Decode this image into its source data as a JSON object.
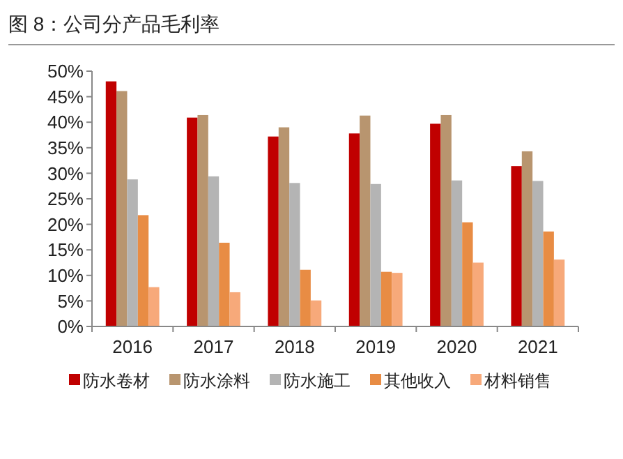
{
  "chart_data": {
    "type": "bar",
    "title": "图 8：公司分产品毛利率",
    "categories": [
      "2016",
      "2017",
      "2018",
      "2019",
      "2020",
      "2021"
    ],
    "series": [
      {
        "name": "防水卷材",
        "color": "#c00000",
        "values": [
          48.0,
          40.9,
          37.2,
          37.8,
          39.7,
          31.4
        ]
      },
      {
        "name": "防水涂料",
        "color": "#b8956f",
        "values": [
          46.1,
          41.4,
          39.0,
          41.3,
          41.4,
          34.3
        ]
      },
      {
        "name": "防水施工",
        "color": "#b4b4b4",
        "values": [
          28.8,
          29.4,
          28.1,
          27.9,
          28.6,
          28.5
        ]
      },
      {
        "name": "其他收入",
        "color": "#e88c44",
        "values": [
          21.8,
          16.4,
          11.1,
          10.7,
          20.4,
          18.6
        ]
      },
      {
        "name": "材料销售",
        "color": "#f7a97a",
        "values": [
          7.7,
          6.7,
          5.1,
          10.5,
          12.5,
          13.1
        ]
      }
    ],
    "ylim": [
      0,
      50
    ],
    "yticks": [
      {
        "value": 0,
        "label": "0%"
      },
      {
        "value": 5,
        "label": "5%"
      },
      {
        "value": 10,
        "label": "10%"
      },
      {
        "value": 15,
        "label": "15%"
      },
      {
        "value": 20,
        "label": "20%"
      },
      {
        "value": 25,
        "label": "25%"
      },
      {
        "value": 30,
        "label": "30%"
      },
      {
        "value": 35,
        "label": "35%"
      },
      {
        "value": 40,
        "label": "40%"
      },
      {
        "value": 45,
        "label": "45%"
      },
      {
        "value": 50,
        "label": "50%"
      }
    ],
    "legend": "bottom"
  }
}
